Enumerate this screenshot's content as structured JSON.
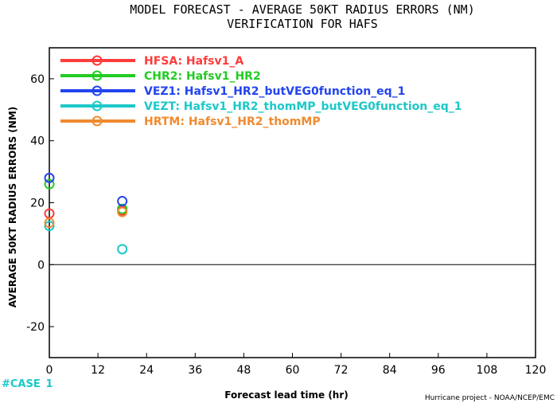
{
  "chart_data": {
    "type": "scatter",
    "title": "MODEL FORECAST - AVERAGE 50KT RADIUS ERRORS (NM)",
    "subtitle": "VERIFICATION FOR HAFS",
    "xlabel": "Forecast lead time (hr)",
    "ylabel": "AVERAGE 50KT RADIUS ERRORS (NM)",
    "xlim": [
      0,
      120
    ],
    "ylim": [
      -30,
      70
    ],
    "xticks": [
      0,
      12,
      24,
      36,
      48,
      60,
      72,
      84,
      96,
      108,
      120
    ],
    "yticks": [
      -20,
      0,
      20,
      40,
      60
    ],
    "grid": false,
    "legend_position": "top-left",
    "series": [
      {
        "name": "HFSA: Hafsv1_A",
        "color": "#ff3b3b",
        "x": [
          0,
          18
        ],
        "y": [
          16.5,
          17.5
        ]
      },
      {
        "name": "CHR2: Hafsv1_HR2",
        "color": "#22cc22",
        "x": [
          0,
          18
        ],
        "y": [
          26,
          18
        ]
      },
      {
        "name": "VEZ1: Hafsv1_HR2_butVEG0function_eq_1",
        "color": "#2244ee",
        "x": [
          0,
          18
        ],
        "y": [
          28,
          20.5
        ]
      },
      {
        "name": "VEZT: Hafsv1_HR2_thomMP_butVEG0function_eq_1",
        "color": "#1cc8c8",
        "x": [
          0,
          18
        ],
        "y": [
          12.5,
          5
        ]
      },
      {
        "name": "HRTM: Hafsv1_HR2_thomMP",
        "color": "#f08a30",
        "x": [
          0,
          18
        ],
        "y": [
          13.5,
          17
        ]
      }
    ]
  },
  "case_label": "#CASE",
  "case_counts": [
    "1"
  ],
  "credit": "Hurricane project - NOAA/NCEP/EMC"
}
